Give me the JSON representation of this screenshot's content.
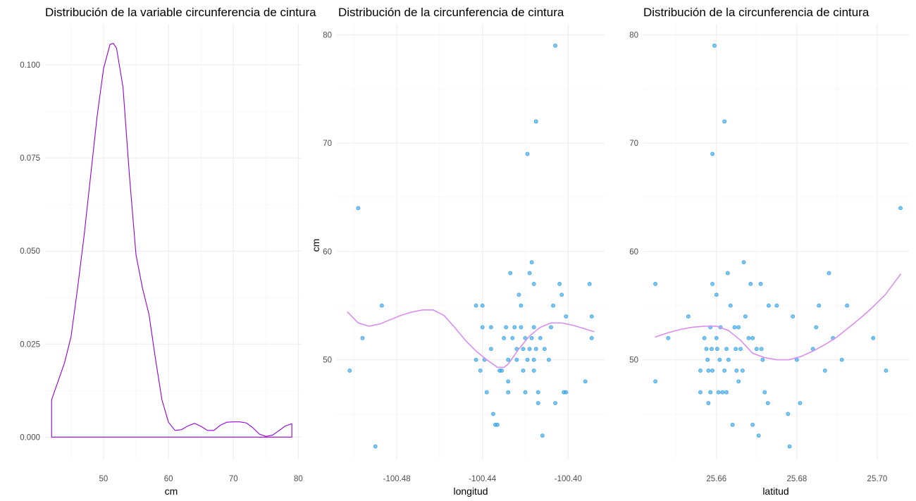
{
  "chart_data": [
    {
      "type": "area",
      "subtype": "density",
      "title": "Distribución de la variable circunferencia de cintura",
      "xlabel": "cm",
      "ylabel": "",
      "xlim": [
        41,
        80.5
      ],
      "ylim": [
        -0.006,
        0.111
      ],
      "xticks": [
        50,
        60,
        70,
        80
      ],
      "yticks": [
        0.0,
        0.025,
        0.05,
        0.075,
        0.1
      ],
      "xtick_labels": [
        "50",
        "60",
        "70",
        "80"
      ],
      "ytick_labels": [
        "0.000",
        "0.025",
        "0.050",
        "0.075",
        "0.100"
      ],
      "grid": true,
      "line_color": "#9400d3",
      "series": [
        {
          "x": [
            42,
            43,
            44,
            45,
            46,
            47,
            48,
            49,
            50,
            51,
            51.5,
            52,
            53,
            54,
            55,
            56,
            57,
            58,
            59,
            60,
            61,
            62,
            63,
            64,
            65,
            66,
            67,
            68,
            69,
            70,
            71,
            72,
            73,
            74,
            75,
            76,
            77,
            78,
            79
          ],
          "y": [
            0.01,
            0.015,
            0.02,
            0.027,
            0.04,
            0.054,
            0.07,
            0.086,
            0.099,
            0.1055,
            0.1058,
            0.1045,
            0.094,
            0.07,
            0.049,
            0.04,
            0.033,
            0.021,
            0.01,
            0.004,
            0.0018,
            0.002,
            0.003,
            0.0037,
            0.0029,
            0.0018,
            0.0018,
            0.0032,
            0.004,
            0.0041,
            0.0041,
            0.0038,
            0.0025,
            0.0008,
            0.0002,
            0.0005,
            0.0017,
            0.003,
            0.0036
          ]
        }
      ]
    },
    {
      "type": "scatter",
      "title": "Distribución de la circunferencia de cintura",
      "xlabel": "longitud",
      "ylabel": "cm",
      "xlim": [
        -100.508,
        -100.383
      ],
      "ylim": [
        40.8,
        81
      ],
      "xticks": [
        -100.48,
        -100.44,
        -100.4
      ],
      "yticks": [
        50,
        60,
        70,
        80
      ],
      "xtick_labels": [
        "-100.48",
        "-100.44",
        "-100.40"
      ],
      "ytick_labels": [
        "50",
        "60",
        "70",
        "80"
      ],
      "grid": true,
      "point_color": "#2fa7ee",
      "smooth_color": "#d98ef0",
      "points": [
        [
          -100.502,
          49
        ],
        [
          -100.498,
          64
        ],
        [
          -100.496,
          52
        ],
        [
          -100.49,
          42
        ],
        [
          -100.487,
          55
        ],
        [
          -100.443,
          55
        ],
        [
          -100.443,
          50
        ],
        [
          -100.44,
          55
        ],
        [
          -100.44,
          53
        ],
        [
          -100.441,
          49
        ],
        [
          -100.439,
          50
        ],
        [
          -100.438,
          47
        ],
        [
          -100.436,
          51
        ],
        [
          -100.436,
          53
        ],
        [
          -100.435,
          45
        ],
        [
          -100.434,
          44
        ],
        [
          -100.433,
          44
        ],
        [
          -100.432,
          49
        ],
        [
          -100.431,
          49
        ],
        [
          -100.43,
          52
        ],
        [
          -100.429,
          53
        ],
        [
          -100.428,
          50
        ],
        [
          -100.428,
          48
        ],
        [
          -100.428,
          47
        ],
        [
          -100.427,
          58
        ],
        [
          -100.426,
          52
        ],
        [
          -100.425,
          53
        ],
        [
          -100.424,
          51
        ],
        [
          -100.424,
          50
        ],
        [
          -100.423,
          56
        ],
        [
          -100.422,
          55
        ],
        [
          -100.422,
          53
        ],
        [
          -100.421,
          49
        ],
        [
          -100.421,
          51
        ],
        [
          -100.42,
          52
        ],
        [
          -100.42,
          47
        ],
        [
          -100.419,
          50
        ],
        [
          -100.419,
          69
        ],
        [
          -100.418,
          51
        ],
        [
          -100.418,
          58
        ],
        [
          -100.417,
          52
        ],
        [
          -100.417,
          59
        ],
        [
          -100.416,
          53
        ],
        [
          -100.416,
          57
        ],
        [
          -100.416,
          50
        ],
        [
          -100.416,
          49
        ],
        [
          -100.415,
          72
        ],
        [
          -100.415,
          51
        ],
        [
          -100.414,
          47
        ],
        [
          -100.414,
          46
        ],
        [
          -100.413,
          52
        ],
        [
          -100.412,
          43
        ],
        [
          -100.411,
          51
        ],
        [
          -100.409,
          50
        ],
        [
          -100.408,
          53
        ],
        [
          -100.407,
          55
        ],
        [
          -100.406,
          79
        ],
        [
          -100.406,
          46
        ],
        [
          -100.404,
          57
        ],
        [
          -100.403,
          56
        ],
        [
          -100.402,
          47
        ],
        [
          -100.401,
          54
        ],
        [
          -100.401,
          47
        ],
        [
          -100.392,
          48
        ],
        [
          -100.39,
          57
        ],
        [
          -100.389,
          52
        ],
        [
          -100.389,
          54
        ]
      ],
      "smooth": {
        "x": [
          -100.503,
          -100.498,
          -100.493,
          -100.488,
          -100.483,
          -100.478,
          -100.473,
          -100.468,
          -100.463,
          -100.458,
          -100.453,
          -100.448,
          -100.443,
          -100.438,
          -100.433,
          -100.43,
          -100.428,
          -100.423,
          -100.418,
          -100.413,
          -100.408,
          -100.403,
          -100.398,
          -100.393,
          -100.388
        ],
        "y": [
          54.4,
          53.4,
          53.1,
          53.3,
          53.7,
          54.1,
          54.4,
          54.6,
          54.6,
          54.1,
          53.0,
          51.8,
          50.8,
          50.0,
          49.3,
          49.3,
          49.6,
          51.0,
          52.2,
          53.0,
          53.4,
          53.4,
          53.2,
          52.9,
          52.6
        ]
      }
    },
    {
      "type": "scatter",
      "title": "Distribución de la circunferencia de cintura",
      "xlabel": "latitud",
      "ylabel": "",
      "xlim": [
        25.6418,
        25.7079
      ],
      "ylim": [
        40.8,
        81
      ],
      "xticks": [
        25.66,
        25.68,
        25.7
      ],
      "yticks": [
        50,
        60,
        70,
        80
      ],
      "xtick_labels": [
        "25.66",
        "25.68",
        "25.70"
      ],
      "ytick_labels": [
        "50",
        "60",
        "70",
        "80"
      ],
      "grid": true,
      "point_color": "#2fa7ee",
      "smooth_color": "#d98ef0",
      "points": [
        [
          25.6448,
          57
        ],
        [
          25.6448,
          48
        ],
        [
          25.648,
          52
        ],
        [
          25.653,
          54
        ],
        [
          25.656,
          47
        ],
        [
          25.656,
          49
        ],
        [
          25.657,
          52
        ],
        [
          25.6575,
          51
        ],
        [
          25.6578,
          50
        ],
        [
          25.658,
          46
        ],
        [
          25.658,
          49
        ],
        [
          25.6585,
          53
        ],
        [
          25.6585,
          47
        ],
        [
          25.6588,
          51
        ],
        [
          25.659,
          49
        ],
        [
          25.659,
          57
        ],
        [
          25.659,
          69
        ],
        [
          25.6595,
          79
        ],
        [
          25.66,
          56
        ],
        [
          25.66,
          52
        ],
        [
          25.6602,
          51
        ],
        [
          25.6605,
          47
        ],
        [
          25.6608,
          50
        ],
        [
          25.661,
          53
        ],
        [
          25.6615,
          47
        ],
        [
          25.662,
          49
        ],
        [
          25.662,
          72
        ],
        [
          25.6625,
          47
        ],
        [
          25.6625,
          51
        ],
        [
          25.6628,
          58
        ],
        [
          25.663,
          50
        ],
        [
          25.6635,
          55
        ],
        [
          25.664,
          44
        ],
        [
          25.6645,
          53
        ],
        [
          25.6648,
          51
        ],
        [
          25.665,
          49
        ],
        [
          25.6655,
          48
        ],
        [
          25.6655,
          53
        ],
        [
          25.666,
          51
        ],
        [
          25.6665,
          49
        ],
        [
          25.6668,
          59
        ],
        [
          25.6672,
          54
        ],
        [
          25.668,
          52
        ],
        [
          25.6685,
          57
        ],
        [
          25.669,
          44
        ],
        [
          25.669,
          52
        ],
        [
          25.67,
          51
        ],
        [
          25.6705,
          43
        ],
        [
          25.671,
          57
        ],
        [
          25.6712,
          51
        ],
        [
          25.6715,
          50
        ],
        [
          25.672,
          47
        ],
        [
          25.6728,
          46
        ],
        [
          25.673,
          55
        ],
        [
          25.675,
          55
        ],
        [
          25.6778,
          45
        ],
        [
          25.6782,
          42
        ],
        [
          25.679,
          54
        ],
        [
          25.68,
          50
        ],
        [
          25.6808,
          46
        ],
        [
          25.684,
          51
        ],
        [
          25.6848,
          53
        ],
        [
          25.6855,
          55
        ],
        [
          25.687,
          49
        ],
        [
          25.688,
          58
        ],
        [
          25.689,
          52
        ],
        [
          25.6912,
          50
        ],
        [
          25.6925,
          55
        ],
        [
          25.699,
          52
        ],
        [
          25.7022,
          49
        ],
        [
          25.7058,
          64
        ]
      ],
      "smooth": {
        "x": [
          25.6448,
          25.648,
          25.651,
          25.654,
          25.657,
          25.66,
          25.663,
          25.666,
          25.669,
          25.672,
          25.675,
          25.678,
          25.681,
          25.684,
          25.687,
          25.69,
          25.693,
          25.696,
          25.699,
          25.702,
          25.7058
        ],
        "y": [
          52.1,
          52.5,
          52.8,
          53.0,
          53.1,
          53.1,
          52.7,
          51.8,
          50.6,
          50.2,
          50.0,
          50.0,
          50.3,
          50.8,
          51.4,
          52.1,
          53.0,
          53.9,
          54.9,
          56.0,
          57.9
        ]
      }
    }
  ]
}
